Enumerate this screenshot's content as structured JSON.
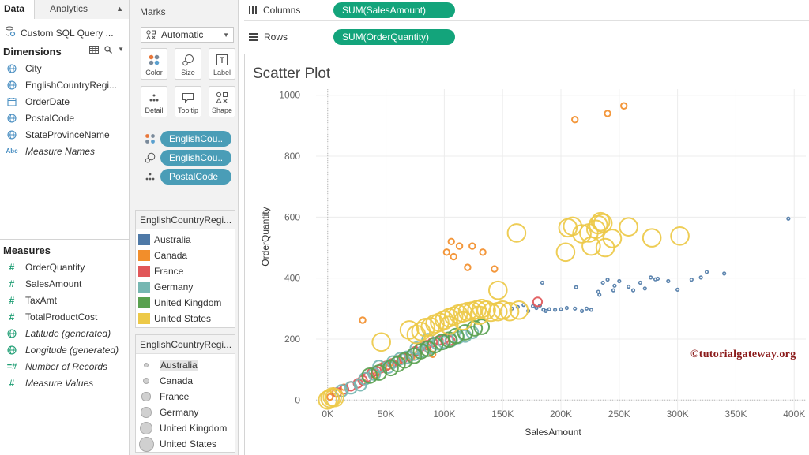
{
  "data_pane": {
    "tabs": [
      {
        "label": "Data",
        "active": true
      },
      {
        "label": "Analytics",
        "active": false
      }
    ],
    "datasource": "Custom SQL Query ...",
    "dimensions_label": "Dimensions",
    "dimensions": [
      {
        "label": "City",
        "icon": "globe-icon",
        "italic": false
      },
      {
        "label": "EnglishCountryRegi...",
        "icon": "globe-icon",
        "italic": false
      },
      {
        "label": "OrderDate",
        "icon": "calendar-icon",
        "italic": false
      },
      {
        "label": "PostalCode",
        "icon": "globe-icon",
        "italic": false
      },
      {
        "label": "StateProvinceName",
        "icon": "globe-icon",
        "italic": false
      },
      {
        "label": "Measure Names",
        "icon": "abc-icon",
        "italic": true
      }
    ],
    "measures_label": "Measures",
    "measures": [
      {
        "label": "OrderQuantity",
        "icon": "hash-icon",
        "italic": false
      },
      {
        "label": "SalesAmount",
        "icon": "hash-icon",
        "italic": false
      },
      {
        "label": "TaxAmt",
        "icon": "hash-icon",
        "italic": false
      },
      {
        "label": "TotalProductCost",
        "icon": "hash-icon",
        "italic": false
      },
      {
        "label": "Latitude (generated)",
        "icon": "globe-icon",
        "italic": true
      },
      {
        "label": "Longitude (generated)",
        "icon": "globe-icon",
        "italic": true
      },
      {
        "label": "Number of Records",
        "icon": "hash-icon",
        "italic": true
      },
      {
        "label": "Measure Values",
        "icon": "hash-icon",
        "italic": true
      }
    ]
  },
  "marks": {
    "title": "Marks",
    "mark_type": "Automatic",
    "buttons": [
      {
        "label": "Color",
        "icon": "color-icon"
      },
      {
        "label": "Size",
        "icon": "size-icon"
      },
      {
        "label": "Label",
        "icon": "label-icon"
      },
      {
        "label": "Detail",
        "icon": "detail-icon"
      },
      {
        "label": "Tooltip",
        "icon": "tooltip-icon"
      },
      {
        "label": "Shape",
        "icon": "shape-icon"
      }
    ],
    "pills": [
      {
        "label": "EnglishCou..",
        "encoding": "color-icon"
      },
      {
        "label": "EnglishCou..",
        "encoding": "size-icon"
      },
      {
        "label": "PostalCode",
        "encoding": "detail-icon"
      }
    ]
  },
  "color_legend": {
    "title": "EnglishCountryRegi...",
    "items": [
      {
        "label": "Australia",
        "color": "#4e79a7"
      },
      {
        "label": "Canada",
        "color": "#f28e2b"
      },
      {
        "label": "France",
        "color": "#e15759"
      },
      {
        "label": "Germany",
        "color": "#76b7b2"
      },
      {
        "label": "United Kingdom",
        "color": "#59a14f"
      },
      {
        "label": "United States",
        "color": "#edc948"
      }
    ]
  },
  "size_legend": {
    "title": "EnglishCountryRegi...",
    "items": [
      {
        "label": "Australia",
        "highlighted": true
      },
      {
        "label": "Canada",
        "highlighted": false
      },
      {
        "label": "France",
        "highlighted": false
      },
      {
        "label": "Germany",
        "highlighted": false
      },
      {
        "label": "United Kingdom",
        "highlighted": false
      },
      {
        "label": "United States",
        "highlighted": false
      }
    ]
  },
  "shelves": {
    "columns_label": "Columns",
    "columns_pill": "SUM(SalesAmount)",
    "rows_label": "Rows",
    "rows_pill": "SUM(OrderQuantity)"
  },
  "watermark": "©tutorialgateway.org",
  "chart_data": {
    "type": "scatter",
    "title": "Scatter Plot",
    "xlabel": "SalesAmount",
    "ylabel": "OrderQuantity",
    "xlim": [
      -10000,
      410000
    ],
    "ylim": [
      -20,
      1020
    ],
    "x_ticks": [
      0,
      50000,
      100000,
      150000,
      200000,
      250000,
      300000,
      350000,
      400000
    ],
    "x_tick_labels": [
      "0K",
      "50K",
      "100K",
      "150K",
      "200K",
      "250K",
      "300K",
      "350K",
      "400K"
    ],
    "y_ticks": [
      0,
      200,
      400,
      600,
      800,
      1000
    ],
    "y_tick_labels": [
      "0",
      "200",
      "400",
      "600",
      "800",
      "1000"
    ],
    "grid": true,
    "series": [
      {
        "name": "Australia",
        "color": "#4e79a7",
        "size_rank": 1,
        "points": [
          [
            158000,
            300
          ],
          [
            163000,
            305
          ],
          [
            168000,
            312
          ],
          [
            172000,
            292
          ],
          [
            176000,
            308
          ],
          [
            179000,
            302
          ],
          [
            182000,
            310
          ],
          [
            184000,
            385
          ],
          [
            185000,
            296
          ],
          [
            187000,
            292
          ],
          [
            190000,
            298
          ],
          [
            195000,
            296
          ],
          [
            200000,
            298
          ],
          [
            205000,
            302
          ],
          [
            212000,
            300
          ],
          [
            213000,
            370
          ],
          [
            218000,
            292
          ],
          [
            222000,
            300
          ],
          [
            226000,
            296
          ],
          [
            232000,
            355
          ],
          [
            233000,
            345
          ],
          [
            236000,
            385
          ],
          [
            240000,
            395
          ],
          [
            245000,
            360
          ],
          [
            246000,
            375
          ],
          [
            250000,
            390
          ],
          [
            258000,
            372
          ],
          [
            262000,
            360
          ],
          [
            268000,
            385
          ],
          [
            272000,
            366
          ],
          [
            277000,
            402
          ],
          [
            281000,
            396
          ],
          [
            283000,
            398
          ],
          [
            292000,
            390
          ],
          [
            300000,
            362
          ],
          [
            312000,
            395
          ],
          [
            320000,
            402
          ],
          [
            325000,
            420
          ],
          [
            340000,
            415
          ],
          [
            395000,
            595
          ]
        ]
      },
      {
        "name": "Canada",
        "color": "#f28e2b",
        "size_rank": 2,
        "points": [
          [
            30000,
            262
          ],
          [
            102000,
            485
          ],
          [
            106000,
            520
          ],
          [
            108000,
            470
          ],
          [
            113000,
            505
          ],
          [
            120000,
            435
          ],
          [
            124000,
            505
          ],
          [
            133000,
            485
          ],
          [
            143000,
            430
          ],
          [
            212000,
            920
          ],
          [
            240000,
            940
          ],
          [
            254000,
            965
          ],
          [
            2000,
            10
          ],
          [
            5000,
            30
          ],
          [
            14000,
            42
          ],
          [
            30000,
            60
          ],
          [
            42000,
            82
          ],
          [
            48000,
            115
          ],
          [
            52000,
            110
          ],
          [
            58000,
            118
          ],
          [
            64000,
            128
          ],
          [
            72000,
            140
          ],
          [
            78000,
            155
          ],
          [
            86000,
            165
          ],
          [
            90000,
            150
          ]
        ]
      },
      {
        "name": "France",
        "color": "#e15759",
        "size_rank": 3,
        "points": [
          [
            8000,
            25
          ],
          [
            14000,
            35
          ],
          [
            20000,
            45
          ],
          [
            26000,
            55
          ],
          [
            30000,
            65
          ],
          [
            34000,
            75
          ],
          [
            38000,
            90
          ],
          [
            42000,
            95
          ],
          [
            46000,
            105
          ],
          [
            50000,
            112
          ],
          [
            55000,
            120
          ],
          [
            60000,
            130
          ],
          [
            65000,
            138
          ],
          [
            70000,
            145
          ],
          [
            75000,
            160
          ],
          [
            80000,
            175
          ],
          [
            85000,
            180
          ],
          [
            90000,
            190
          ],
          [
            95000,
            195
          ],
          [
            100000,
            200
          ],
          [
            105000,
            195
          ],
          [
            180000,
            322
          ]
        ]
      },
      {
        "name": "Germany",
        "color": "#76b7b2",
        "size_rank": 4,
        "points": [
          [
            12000,
            30
          ],
          [
            20000,
            40
          ],
          [
            28000,
            50
          ],
          [
            32000,
            70
          ],
          [
            40000,
            85
          ],
          [
            44000,
            110
          ],
          [
            52000,
            108
          ],
          [
            56000,
            125
          ],
          [
            62000,
            135
          ],
          [
            68000,
            140
          ],
          [
            74000,
            150
          ],
          [
            82000,
            160
          ],
          [
            88000,
            172
          ],
          [
            94000,
            185
          ],
          [
            100000,
            190
          ],
          [
            106000,
            195
          ],
          [
            112000,
            205
          ],
          [
            118000,
            210
          ],
          [
            124000,
            222
          ],
          [
            86000,
            198
          ],
          [
            76000,
            170
          ]
        ]
      },
      {
        "name": "United Kingdom",
        "color": "#59a14f",
        "size_rank": 5,
        "points": [
          [
            36000,
            80
          ],
          [
            44000,
            90
          ],
          [
            54000,
            105
          ],
          [
            60000,
            118
          ],
          [
            66000,
            130
          ],
          [
            74000,
            145
          ],
          [
            80000,
            160
          ],
          [
            86000,
            168
          ],
          [
            92000,
            180
          ],
          [
            98000,
            190
          ],
          [
            104000,
            198
          ],
          [
            110000,
            210
          ],
          [
            118000,
            222
          ],
          [
            126000,
            235
          ],
          [
            132000,
            240
          ]
        ]
      },
      {
        "name": "United States",
        "color": "#edc948",
        "size_rank": 6,
        "points": [
          [
            0,
            0
          ],
          [
            2000,
            5
          ],
          [
            4000,
            10
          ],
          [
            6000,
            8
          ],
          [
            46000,
            190
          ],
          [
            76000,
            215
          ],
          [
            80000,
            225
          ],
          [
            84000,
            238
          ],
          [
            88000,
            240
          ],
          [
            92000,
            250
          ],
          [
            96000,
            255
          ],
          [
            100000,
            262
          ],
          [
            104000,
            270
          ],
          [
            108000,
            275
          ],
          [
            112000,
            282
          ],
          [
            116000,
            286
          ],
          [
            120000,
            290
          ],
          [
            124000,
            292
          ],
          [
            128000,
            296
          ],
          [
            132000,
            300
          ],
          [
            136000,
            295
          ],
          [
            140000,
            288
          ],
          [
            146000,
            290
          ],
          [
            150000,
            295
          ],
          [
            156000,
            290
          ],
          [
            164000,
            295
          ],
          [
            70000,
            230
          ],
          [
            116000,
            260
          ],
          [
            104000,
            245
          ],
          [
            130000,
            278
          ],
          [
            146000,
            360
          ],
          [
            162000,
            548
          ],
          [
            204000,
            485
          ],
          [
            206000,
            565
          ],
          [
            210000,
            570
          ],
          [
            218000,
            545
          ],
          [
            224000,
            548
          ],
          [
            226000,
            505
          ],
          [
            230000,
            560
          ],
          [
            232000,
            575
          ],
          [
            234000,
            585
          ],
          [
            236000,
            580
          ],
          [
            238000,
            500
          ],
          [
            244000,
            530
          ],
          [
            258000,
            568
          ],
          [
            278000,
            532
          ],
          [
            302000,
            538
          ]
        ]
      }
    ]
  }
}
